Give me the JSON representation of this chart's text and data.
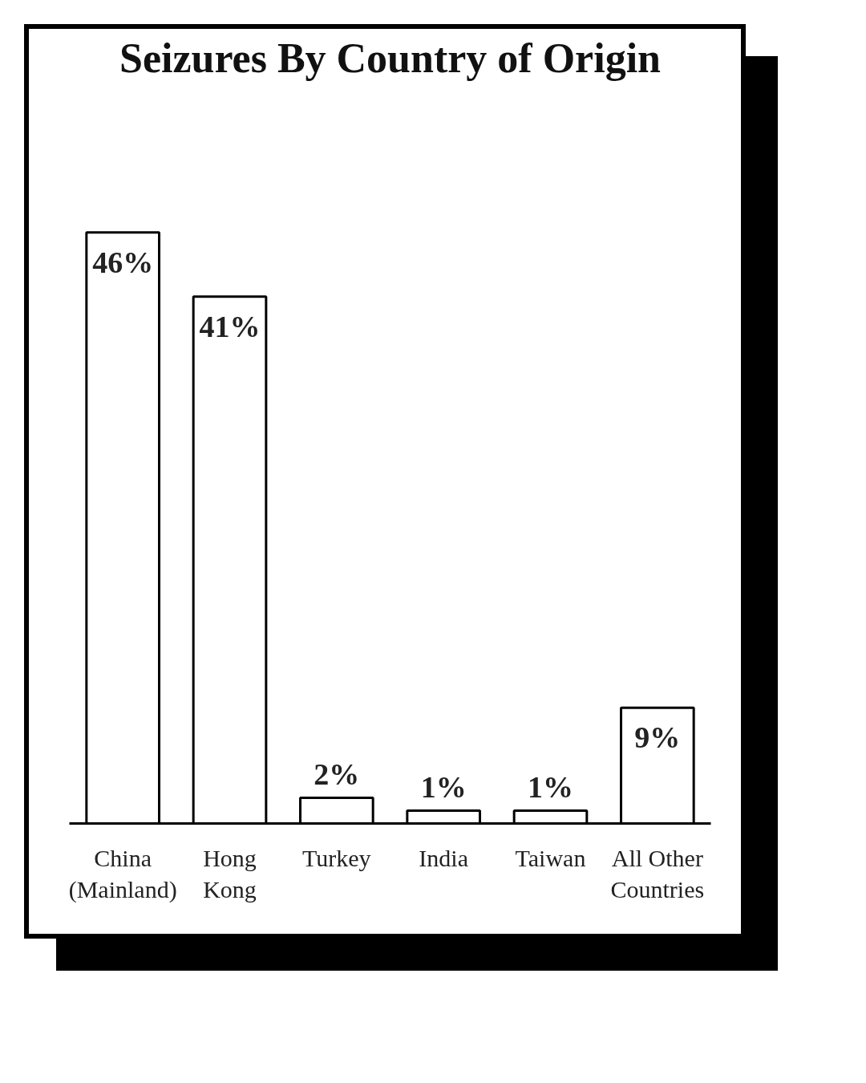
{
  "chart_data": {
    "type": "bar",
    "title": "Seizures By Country of Origin",
    "categories": [
      "China\n(Mainland)",
      "Hong\nKong",
      "Turkey",
      "India",
      "Taiwan",
      "All Other\nCountries"
    ],
    "values": [
      46,
      41,
      2,
      1,
      1,
      9
    ],
    "color": "#ffffff",
    "value_labels": [
      "46%",
      "41%",
      "2%",
      "1%",
      "1%",
      "9%"
    ]
  }
}
